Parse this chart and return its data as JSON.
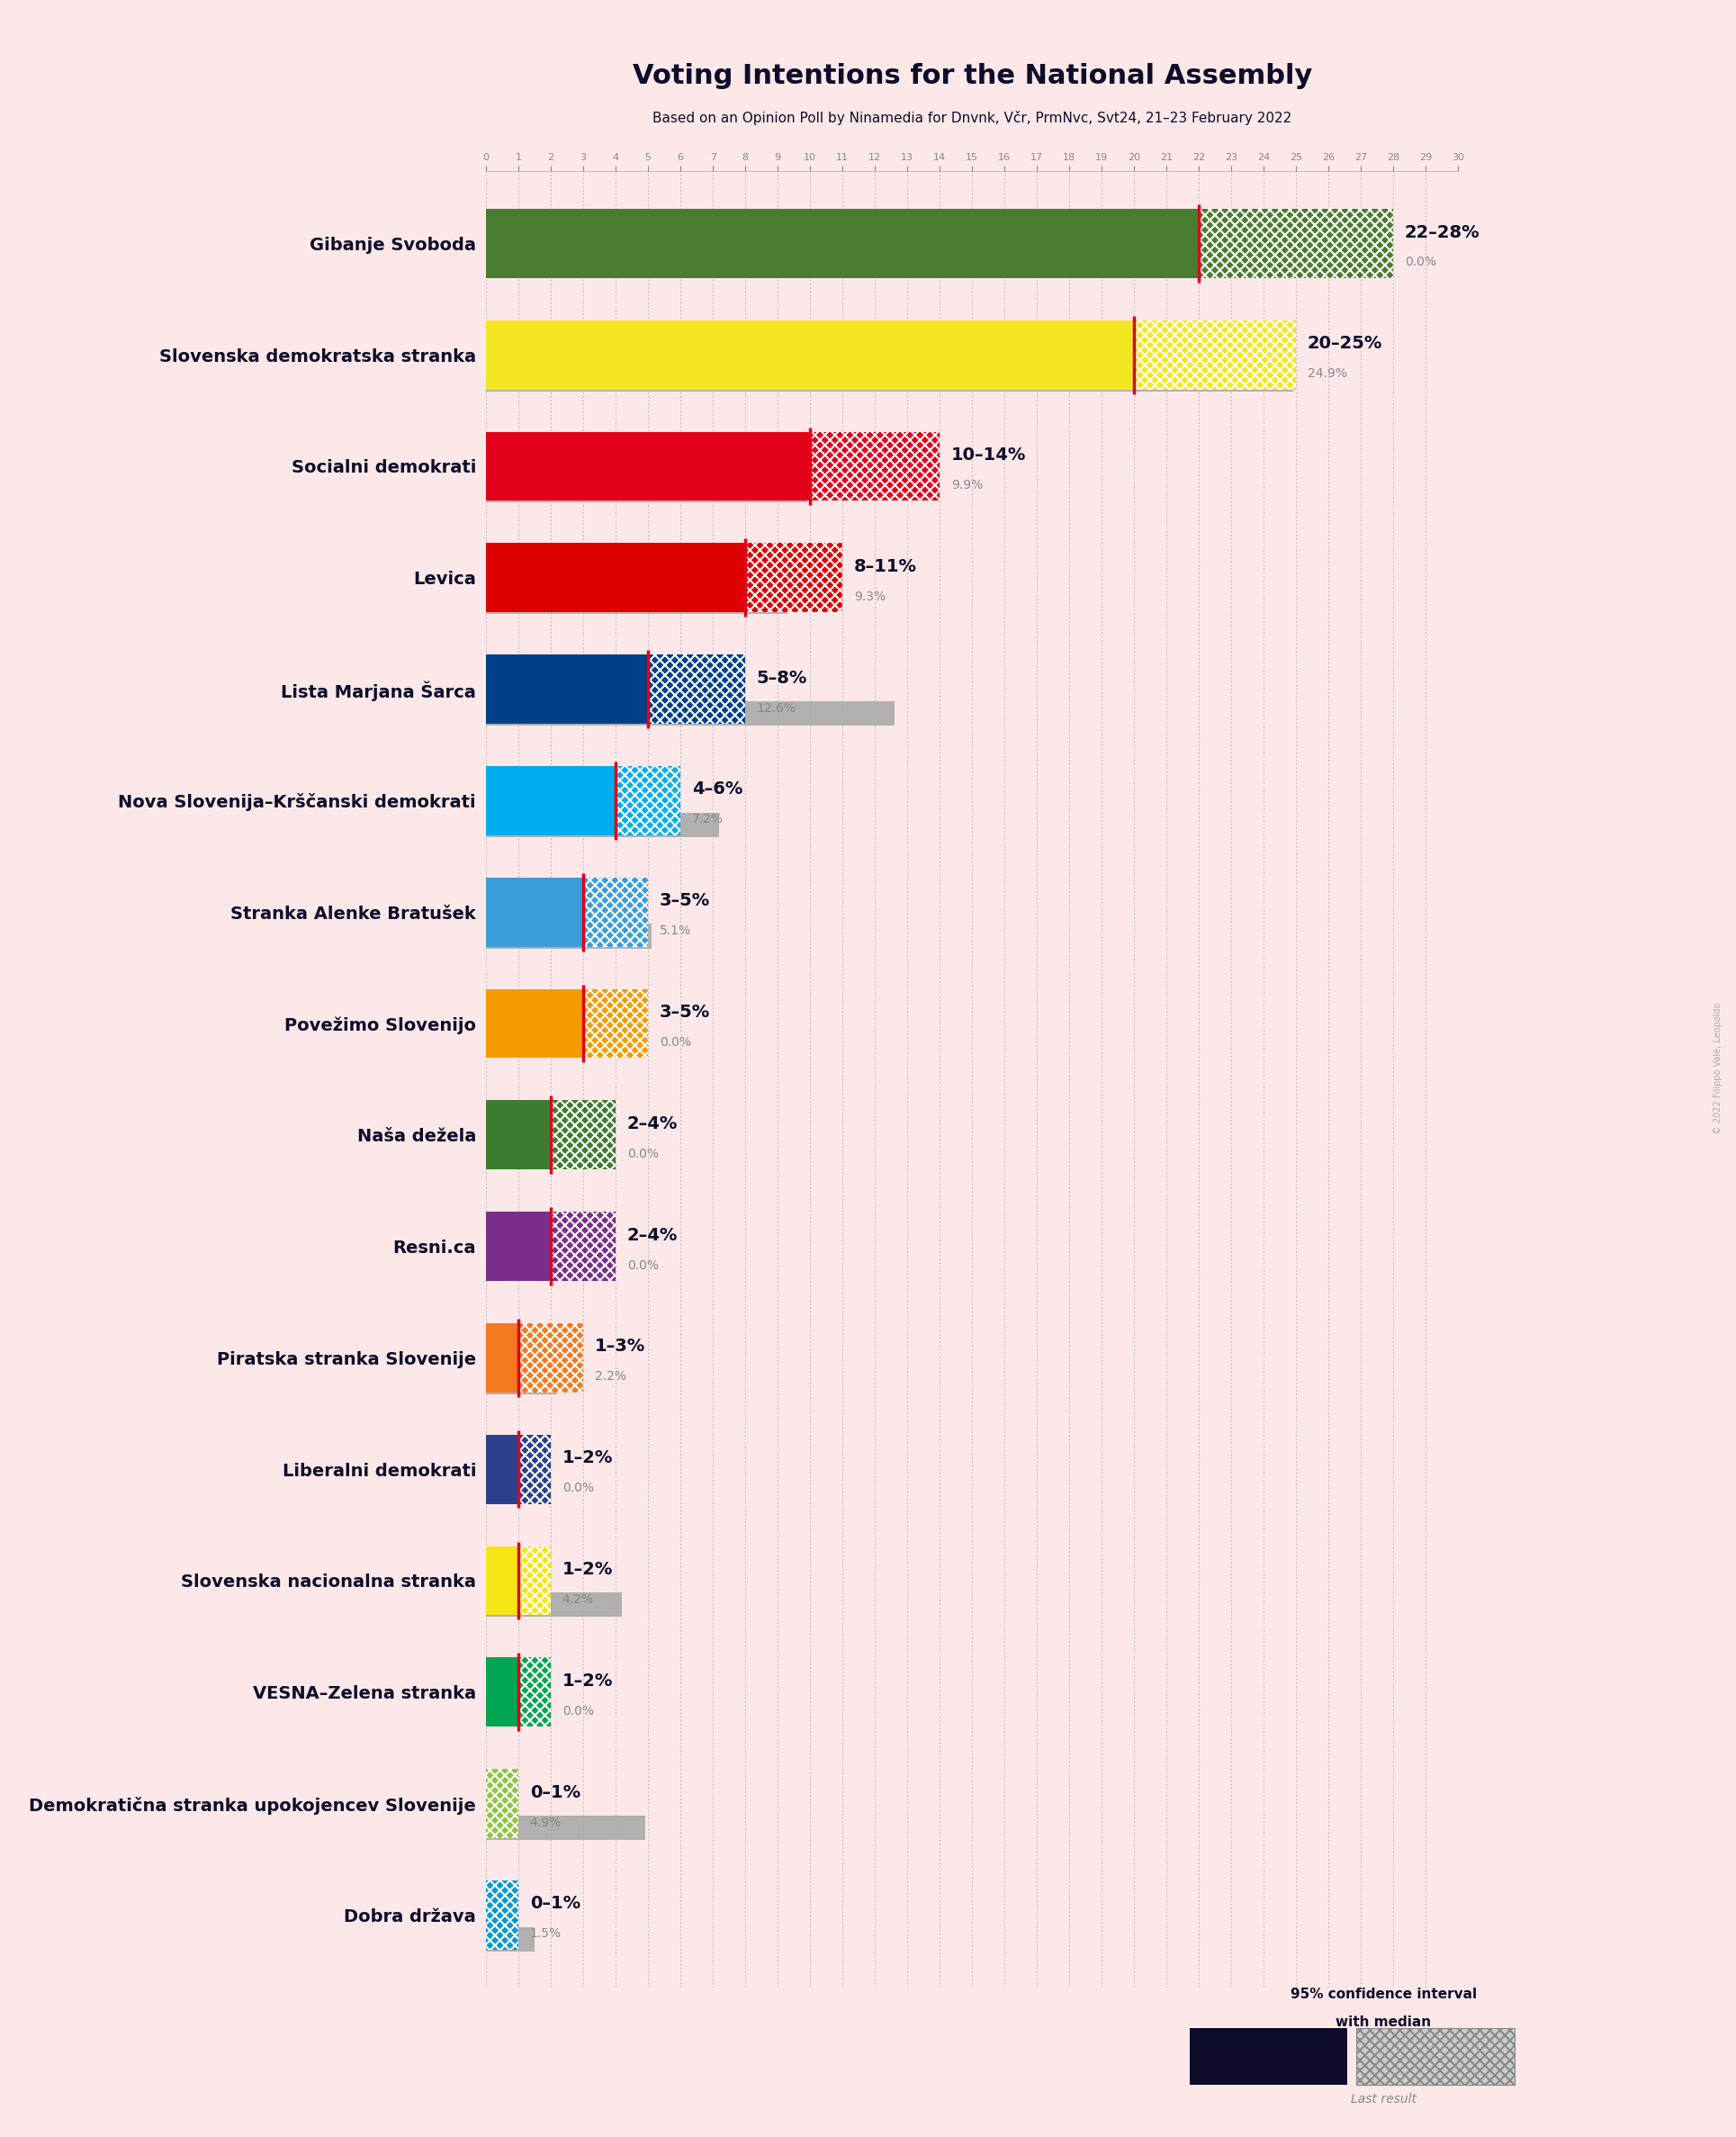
{
  "title": "Voting Intentions for the National Assembly",
  "subtitle": "Based on an Opinion Poll by Ninamedia for Dnvnk, Včr, PrmNvc, Svt24, 21–23 February 2022",
  "background_color": "#fce8e8",
  "parties": [
    {
      "name": "Gibanje Svoboda",
      "ci_low": 22,
      "ci_high": 28,
      "median": 22,
      "last": 0.0,
      "color": "#4a7c2f",
      "label": "22–28%",
      "last_label": "0.0%"
    },
    {
      "name": "Slovenska demokratska stranka",
      "ci_low": 20,
      "ci_high": 25,
      "median": 20,
      "last": 24.9,
      "color": "#f5e622",
      "label": "20–25%",
      "last_label": "24.9%"
    },
    {
      "name": "Socialni demokrati",
      "ci_low": 10,
      "ci_high": 14,
      "median": 10,
      "last": 9.9,
      "color": "#e2001a",
      "label": "10–14%",
      "last_label": "9.9%"
    },
    {
      "name": "Levica",
      "ci_low": 8,
      "ci_high": 11,
      "median": 8,
      "last": 9.3,
      "color": "#dd0000",
      "label": "8–11%",
      "last_label": "9.3%"
    },
    {
      "name": "Lista Marjana Šarca",
      "ci_low": 5,
      "ci_high": 8,
      "median": 5,
      "last": 12.6,
      "color": "#003f8a",
      "label": "5–8%",
      "last_label": "12.6%"
    },
    {
      "name": "Nova Slovenija–Krščanski demokrati",
      "ci_low": 4,
      "ci_high": 6,
      "median": 4,
      "last": 7.2,
      "color": "#00aeef",
      "label": "4–6%",
      "last_label": "7.2%"
    },
    {
      "name": "Stranka Alenke Bratušek",
      "ci_low": 3,
      "ci_high": 5,
      "median": 3,
      "last": 5.1,
      "color": "#3a9dd9",
      "label": "3–5%",
      "last_label": "5.1%"
    },
    {
      "name": "Povežimo Slovenijo",
      "ci_low": 3,
      "ci_high": 5,
      "median": 3,
      "last": 0.0,
      "color": "#f59b00",
      "label": "3–5%",
      "last_label": "0.0%"
    },
    {
      "name": "Naša dežela",
      "ci_low": 2,
      "ci_high": 4,
      "median": 2,
      "last": 0.0,
      "color": "#3e7c2f",
      "label": "2–4%",
      "last_label": "0.0%"
    },
    {
      "name": "Resni.ca",
      "ci_low": 2,
      "ci_high": 4,
      "median": 2,
      "last": 0.0,
      "color": "#7b2d8b",
      "label": "2–4%",
      "last_label": "0.0%"
    },
    {
      "name": "Piratska stranka Slovenije",
      "ci_low": 1,
      "ci_high": 3,
      "median": 1,
      "last": 2.2,
      "color": "#f47920",
      "label": "1–3%",
      "last_label": "2.2%"
    },
    {
      "name": "Liberalni demokrati",
      "ci_low": 1,
      "ci_high": 2,
      "median": 1,
      "last": 0.0,
      "color": "#2d3f8c",
      "label": "1–2%",
      "last_label": "0.0%"
    },
    {
      "name": "Slovenska nacionalna stranka",
      "ci_low": 1,
      "ci_high": 2,
      "median": 1,
      "last": 4.2,
      "color": "#f5e614",
      "label": "1–2%",
      "last_label": "4.2%"
    },
    {
      "name": "VESNA–Zelena stranka",
      "ci_low": 1,
      "ci_high": 2,
      "median": 1,
      "last": 0.0,
      "color": "#00a651",
      "label": "1–2%",
      "last_label": "0.0%"
    },
    {
      "name": "Demokratična stranka upokojencev Slovenije",
      "ci_low": 0,
      "ci_high": 1,
      "median": 0,
      "last": 4.9,
      "color": "#8dc63f",
      "label": "0–1%",
      "last_label": "4.9%"
    },
    {
      "name": "Dobra država",
      "ci_low": 0,
      "ci_high": 1,
      "median": 0,
      "last": 1.5,
      "color": "#0099d4",
      "label": "0–1%",
      "last_label": "1.5%"
    }
  ],
  "x_max": 30,
  "median_line_color": "#e2001a",
  "last_result_color": "#aaaaaa",
  "copyright": "© 2022 Filippo Valé, Leopoldo"
}
